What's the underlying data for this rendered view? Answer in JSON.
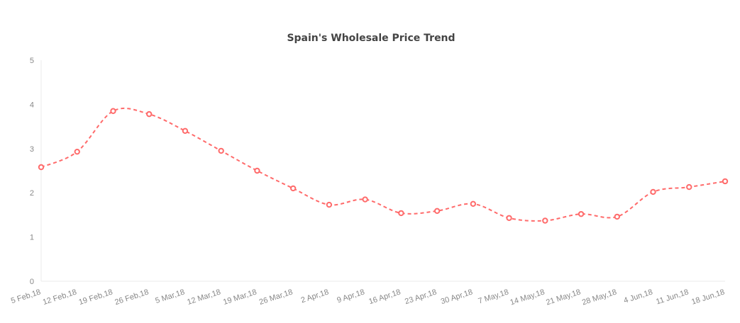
{
  "chart_data": {
    "type": "line",
    "title": "Spain's Wholesale Price Trend",
    "xlabel": "",
    "ylabel": "",
    "ylim": [
      0,
      5
    ],
    "yticks": [
      "0",
      "1",
      "2",
      "3",
      "4",
      "5"
    ],
    "grid": false,
    "categories": [
      "5 Feb,18",
      "12 Feb,18",
      "19 Feb,18",
      "26 Feb,18",
      "5 Mar,18",
      "12 Mar,18",
      "19 Mar,18",
      "26 Mar,18",
      "2 Apr,18",
      "9 Apr,18",
      "16 Apr,18",
      "23 Apr,18",
      "30 Apr,18",
      "7 May,18",
      "14 May,18",
      "21 May,18",
      "28 May,18",
      "4 Jun,18",
      "11 Jun,18",
      "18 Jun,18"
    ],
    "series": [
      {
        "values": [
          2.58,
          2.93,
          3.85,
          3.78,
          3.4,
          2.95,
          2.5,
          2.1,
          1.73,
          1.85,
          1.54,
          1.59,
          1.75,
          1.43,
          1.37,
          1.52,
          1.46,
          2.02,
          2.13,
          2.26
        ]
      }
    ],
    "line_style": "dashed-smooth",
    "marker": "hollow-circle",
    "colors": {
      "series": "#ff6b6b",
      "axis": "#ebebeb",
      "tick": "#888888",
      "title": "#444444"
    }
  }
}
